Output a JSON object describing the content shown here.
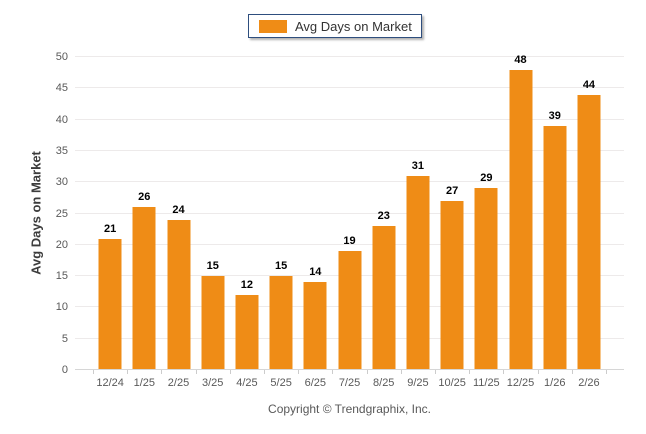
{
  "chart_data": {
    "type": "bar",
    "categories": [
      "12/24",
      "1/25",
      "2/25",
      "3/25",
      "4/25",
      "5/25",
      "6/25",
      "7/25",
      "8/25",
      "9/25",
      "10/25",
      "11/25",
      "12/25",
      "1/26",
      "2/26"
    ],
    "values": [
      21,
      26,
      24,
      15,
      12,
      15,
      14,
      19,
      23,
      31,
      27,
      29,
      48,
      39,
      44
    ],
    "title": "",
    "xlabel": "",
    "ylabel": "Avg Days on Market",
    "ylim": [
      0,
      50
    ],
    "ytick_step": 5,
    "grid": true,
    "legend_position": "top-center",
    "series": [
      {
        "name": "Avg Days on Market",
        "values": [
          21,
          26,
          24,
          15,
          12,
          15,
          14,
          19,
          23,
          31,
          27,
          29,
          48,
          39,
          44
        ]
      }
    ]
  },
  "legend": {
    "label": "Avg Days on Market"
  },
  "footer": {
    "copyright": "Copyright © Trendgraphix, Inc."
  },
  "colors": {
    "bar": "#EF8C16",
    "legend_border": "#2E4E7E",
    "grid": "#EDEAEA",
    "axis_line": "#D6D6D6",
    "tick_mark": "#CCCCCC",
    "tick_label": "#595959",
    "value_label": "#000000"
  }
}
